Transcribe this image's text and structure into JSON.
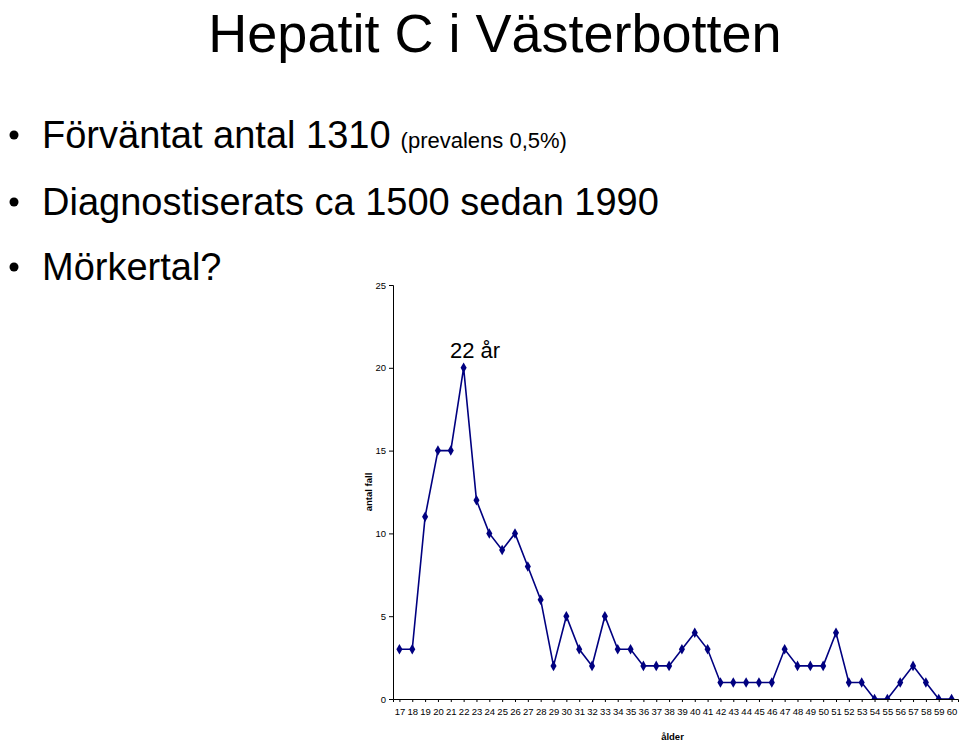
{
  "slide": {
    "title": "Hepatit C i Västerbotten",
    "bullets": [
      {
        "text": "Förväntat antal 1310",
        "note": "(prevalens 0,5%)"
      },
      {
        "text": "Diagnostiserats ca 1500 sedan 1990"
      },
      {
        "text": "Mörkertal?"
      }
    ]
  },
  "chart_data": {
    "type": "line",
    "x": [
      17,
      18,
      19,
      20,
      21,
      22,
      23,
      24,
      25,
      26,
      27,
      28,
      29,
      30,
      31,
      32,
      33,
      34,
      35,
      36,
      37,
      38,
      39,
      40,
      41,
      42,
      43,
      44,
      45,
      46,
      47,
      48,
      49,
      50,
      51,
      52,
      53,
      54,
      55,
      56,
      57,
      58,
      59,
      60
    ],
    "values": [
      3,
      3,
      11,
      15,
      15,
      20,
      12,
      10,
      9,
      10,
      8,
      6,
      2,
      5,
      3,
      2,
      5,
      3,
      3,
      2,
      2,
      2,
      3,
      4,
      3,
      1,
      1,
      1,
      1,
      1,
      3,
      2,
      2,
      2,
      4,
      1,
      1,
      0,
      0,
      1,
      2,
      1,
      0,
      0
    ],
    "xlim": [
      16.5,
      60.5
    ],
    "xticks": [
      17,
      18,
      19,
      20,
      21,
      22,
      23,
      24,
      25,
      26,
      27,
      28,
      29,
      30,
      31,
      32,
      33,
      34,
      35,
      36,
      37,
      38,
      39,
      40,
      41,
      42,
      43,
      44,
      45,
      46,
      47,
      48,
      49,
      50,
      51,
      52,
      53,
      54,
      55,
      56,
      57,
      58,
      59,
      60
    ],
    "ylim": [
      0,
      25
    ],
    "yticks": [
      0,
      5,
      10,
      15,
      20,
      25
    ],
    "x_label": "ålder",
    "y_label": "antal fall",
    "annotations": [
      "22 år"
    ],
    "color": "#000080",
    "marker": "diamond",
    "grid": false
  }
}
